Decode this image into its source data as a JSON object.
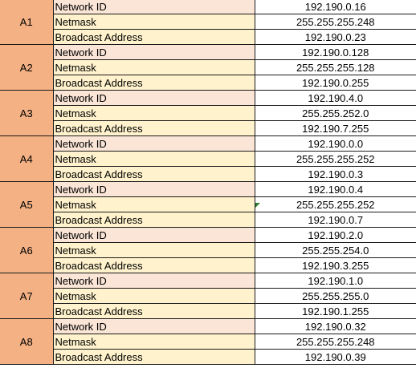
{
  "rows": [
    {
      "group": "A1",
      "network_id_label": "Network ID",
      "network_id": "192.190.0.16",
      "netmask_label": "Netmask",
      "netmask": "255.255.255.248",
      "broadcast_label": "Broadcast Address",
      "broadcast": "192.190.0.23"
    },
    {
      "group": "A2",
      "network_id_label": "Network ID",
      "network_id": "192.190.0.128",
      "netmask_label": "Netmask",
      "netmask": "255.255.255.128",
      "broadcast_label": "Broadcast Address",
      "broadcast": "192.190.0.255"
    },
    {
      "group": "A3",
      "network_id_label": "Network ID",
      "network_id": "192.190.4.0",
      "netmask_label": "Netmask",
      "netmask": "255.255.252.0",
      "broadcast_label": "Broadcast Address",
      "broadcast": "192.190.7.255"
    },
    {
      "group": "A4",
      "network_id_label": "Network ID",
      "network_id": "192.190.0.0",
      "netmask_label": "Netmask",
      "netmask": "255.255.255.252",
      "broadcast_label": "Broadcast Address",
      "broadcast": "192.190.0.3"
    },
    {
      "group": "A5",
      "network_id_label": "Network ID",
      "network_id": "192.190.0.4",
      "netmask_label": "Netmask",
      "netmask": "255.255.255.252",
      "broadcast_label": "Broadcast Address",
      "broadcast": "192.190.0.7"
    },
    {
      "group": "A6",
      "network_id_label": "Network ID",
      "network_id": "192.190.2.0",
      "netmask_label": "Netmask",
      "netmask": "255.255.254.0",
      "broadcast_label": "Broadcast Address",
      "broadcast": "192.190.3.255"
    },
    {
      "group": "A7",
      "network_id_label": "Network ID",
      "network_id": "192.190.1.0",
      "netmask_label": "Netmask",
      "netmask": "255.255.255.0",
      "broadcast_label": "Broadcast Address",
      "broadcast": "192.190.1.255"
    },
    {
      "group": "A8",
      "network_id_label": "Network ID",
      "network_id": "192.190.0.32",
      "netmask_label": "Netmask",
      "netmask": "255.255.255.248",
      "broadcast_label": "Broadcast Address",
      "broadcast": "192.190.0.39"
    }
  ],
  "colors": {
    "group_cell": "#f4b184",
    "label_fill_a": "#fbe5d6",
    "label_fill_b": "#fff2cc",
    "comment_marker": "#2e7d32"
  }
}
